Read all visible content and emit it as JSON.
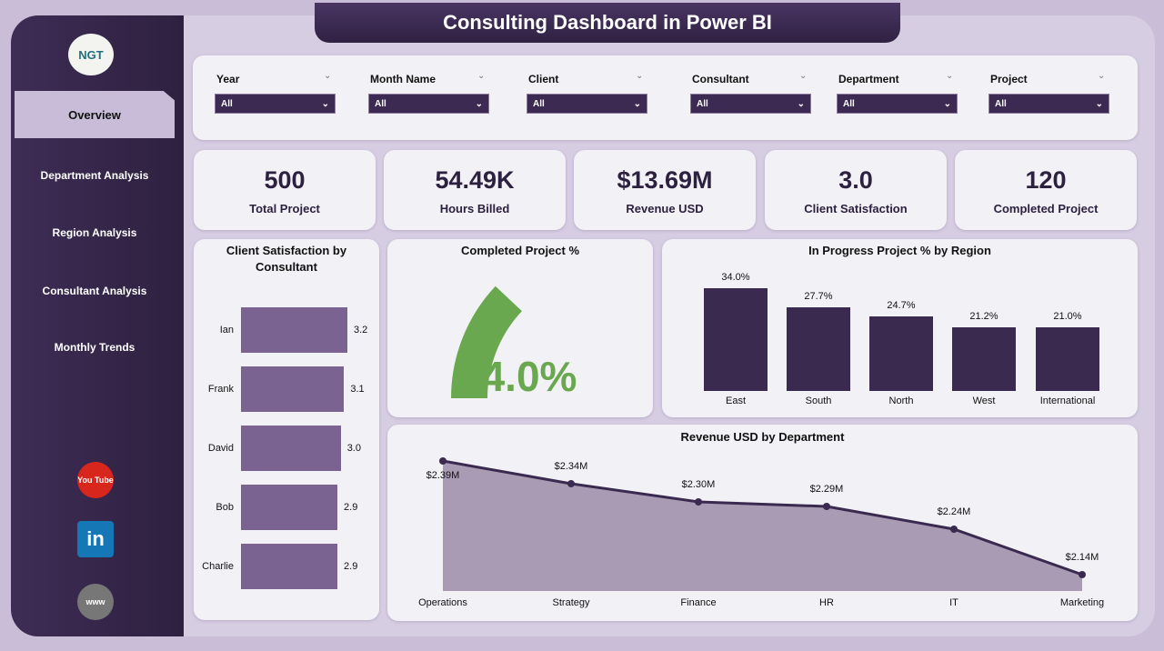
{
  "title": "Consulting Dashboard in Power BI",
  "logo": "NGT",
  "nav": [
    {
      "label": "Overview",
      "active": true
    },
    {
      "label": "Department Analysis"
    },
    {
      "label": "Region Analysis"
    },
    {
      "label": "Consultant Analysis"
    },
    {
      "label": "Monthly Trends"
    }
  ],
  "social": [
    {
      "name": "youtube-icon",
      "label": "You Tube",
      "color": "#d9261c"
    },
    {
      "name": "linkedin-icon",
      "label": "in",
      "color": "#1577b5"
    },
    {
      "name": "globe-icon",
      "label": "www",
      "color": "#777"
    }
  ],
  "filters": [
    {
      "label": "Year",
      "value": "All"
    },
    {
      "label": "Month Name",
      "value": "All"
    },
    {
      "label": "Client",
      "value": "All"
    },
    {
      "label": "Consultant",
      "value": "All"
    },
    {
      "label": "Department",
      "value": "All"
    },
    {
      "label": "Project",
      "value": "All"
    }
  ],
  "kpis": [
    {
      "value": "500",
      "label": "Total Project"
    },
    {
      "value": "54.49K",
      "label": "Hours Billed"
    },
    {
      "value": "$13.69M",
      "label": "Revenue USD"
    },
    {
      "value": "3.0",
      "label": "Client Satisfaction"
    },
    {
      "value": "120",
      "label": "Completed Project"
    }
  ],
  "colors": {
    "accent": "#3d2a52",
    "bar_light": "#7a6391",
    "bar_dark": "#3b2a4f",
    "gauge": "#6aa84f"
  },
  "chart_data": [
    {
      "type": "bar",
      "orientation": "horizontal",
      "title": "Client Satisfaction by Consultant",
      "categories": [
        "Ian",
        "Frank",
        "David",
        "Bob",
        "Charlie"
      ],
      "values": [
        3.2,
        3.1,
        3.0,
        2.9,
        2.9
      ],
      "labels": [
        "3.2",
        "3.1",
        "3.0",
        "2.9",
        "2.9"
      ]
    },
    {
      "type": "gauge",
      "title": "Completed Project %",
      "value": 24.0,
      "label": "24.0%"
    },
    {
      "type": "bar",
      "title": "In Progress Project % by Region",
      "categories": [
        "East",
        "South",
        "North",
        "West",
        "International"
      ],
      "values": [
        34.0,
        27.7,
        24.7,
        21.2,
        21.0
      ],
      "labels": [
        "34.0%",
        "27.7%",
        "24.7%",
        "21.2%",
        "21.0%"
      ]
    },
    {
      "type": "area",
      "title": "Revenue USD by Department",
      "categories": [
        "Operations",
        "Strategy",
        "Finance",
        "HR",
        "IT",
        "Marketing"
      ],
      "values": [
        2.39,
        2.34,
        2.3,
        2.29,
        2.24,
        2.14
      ],
      "labels": [
        "$2.39M",
        "$2.34M",
        "$2.30M",
        "$2.29M",
        "$2.24M",
        "$2.14M"
      ]
    }
  ]
}
